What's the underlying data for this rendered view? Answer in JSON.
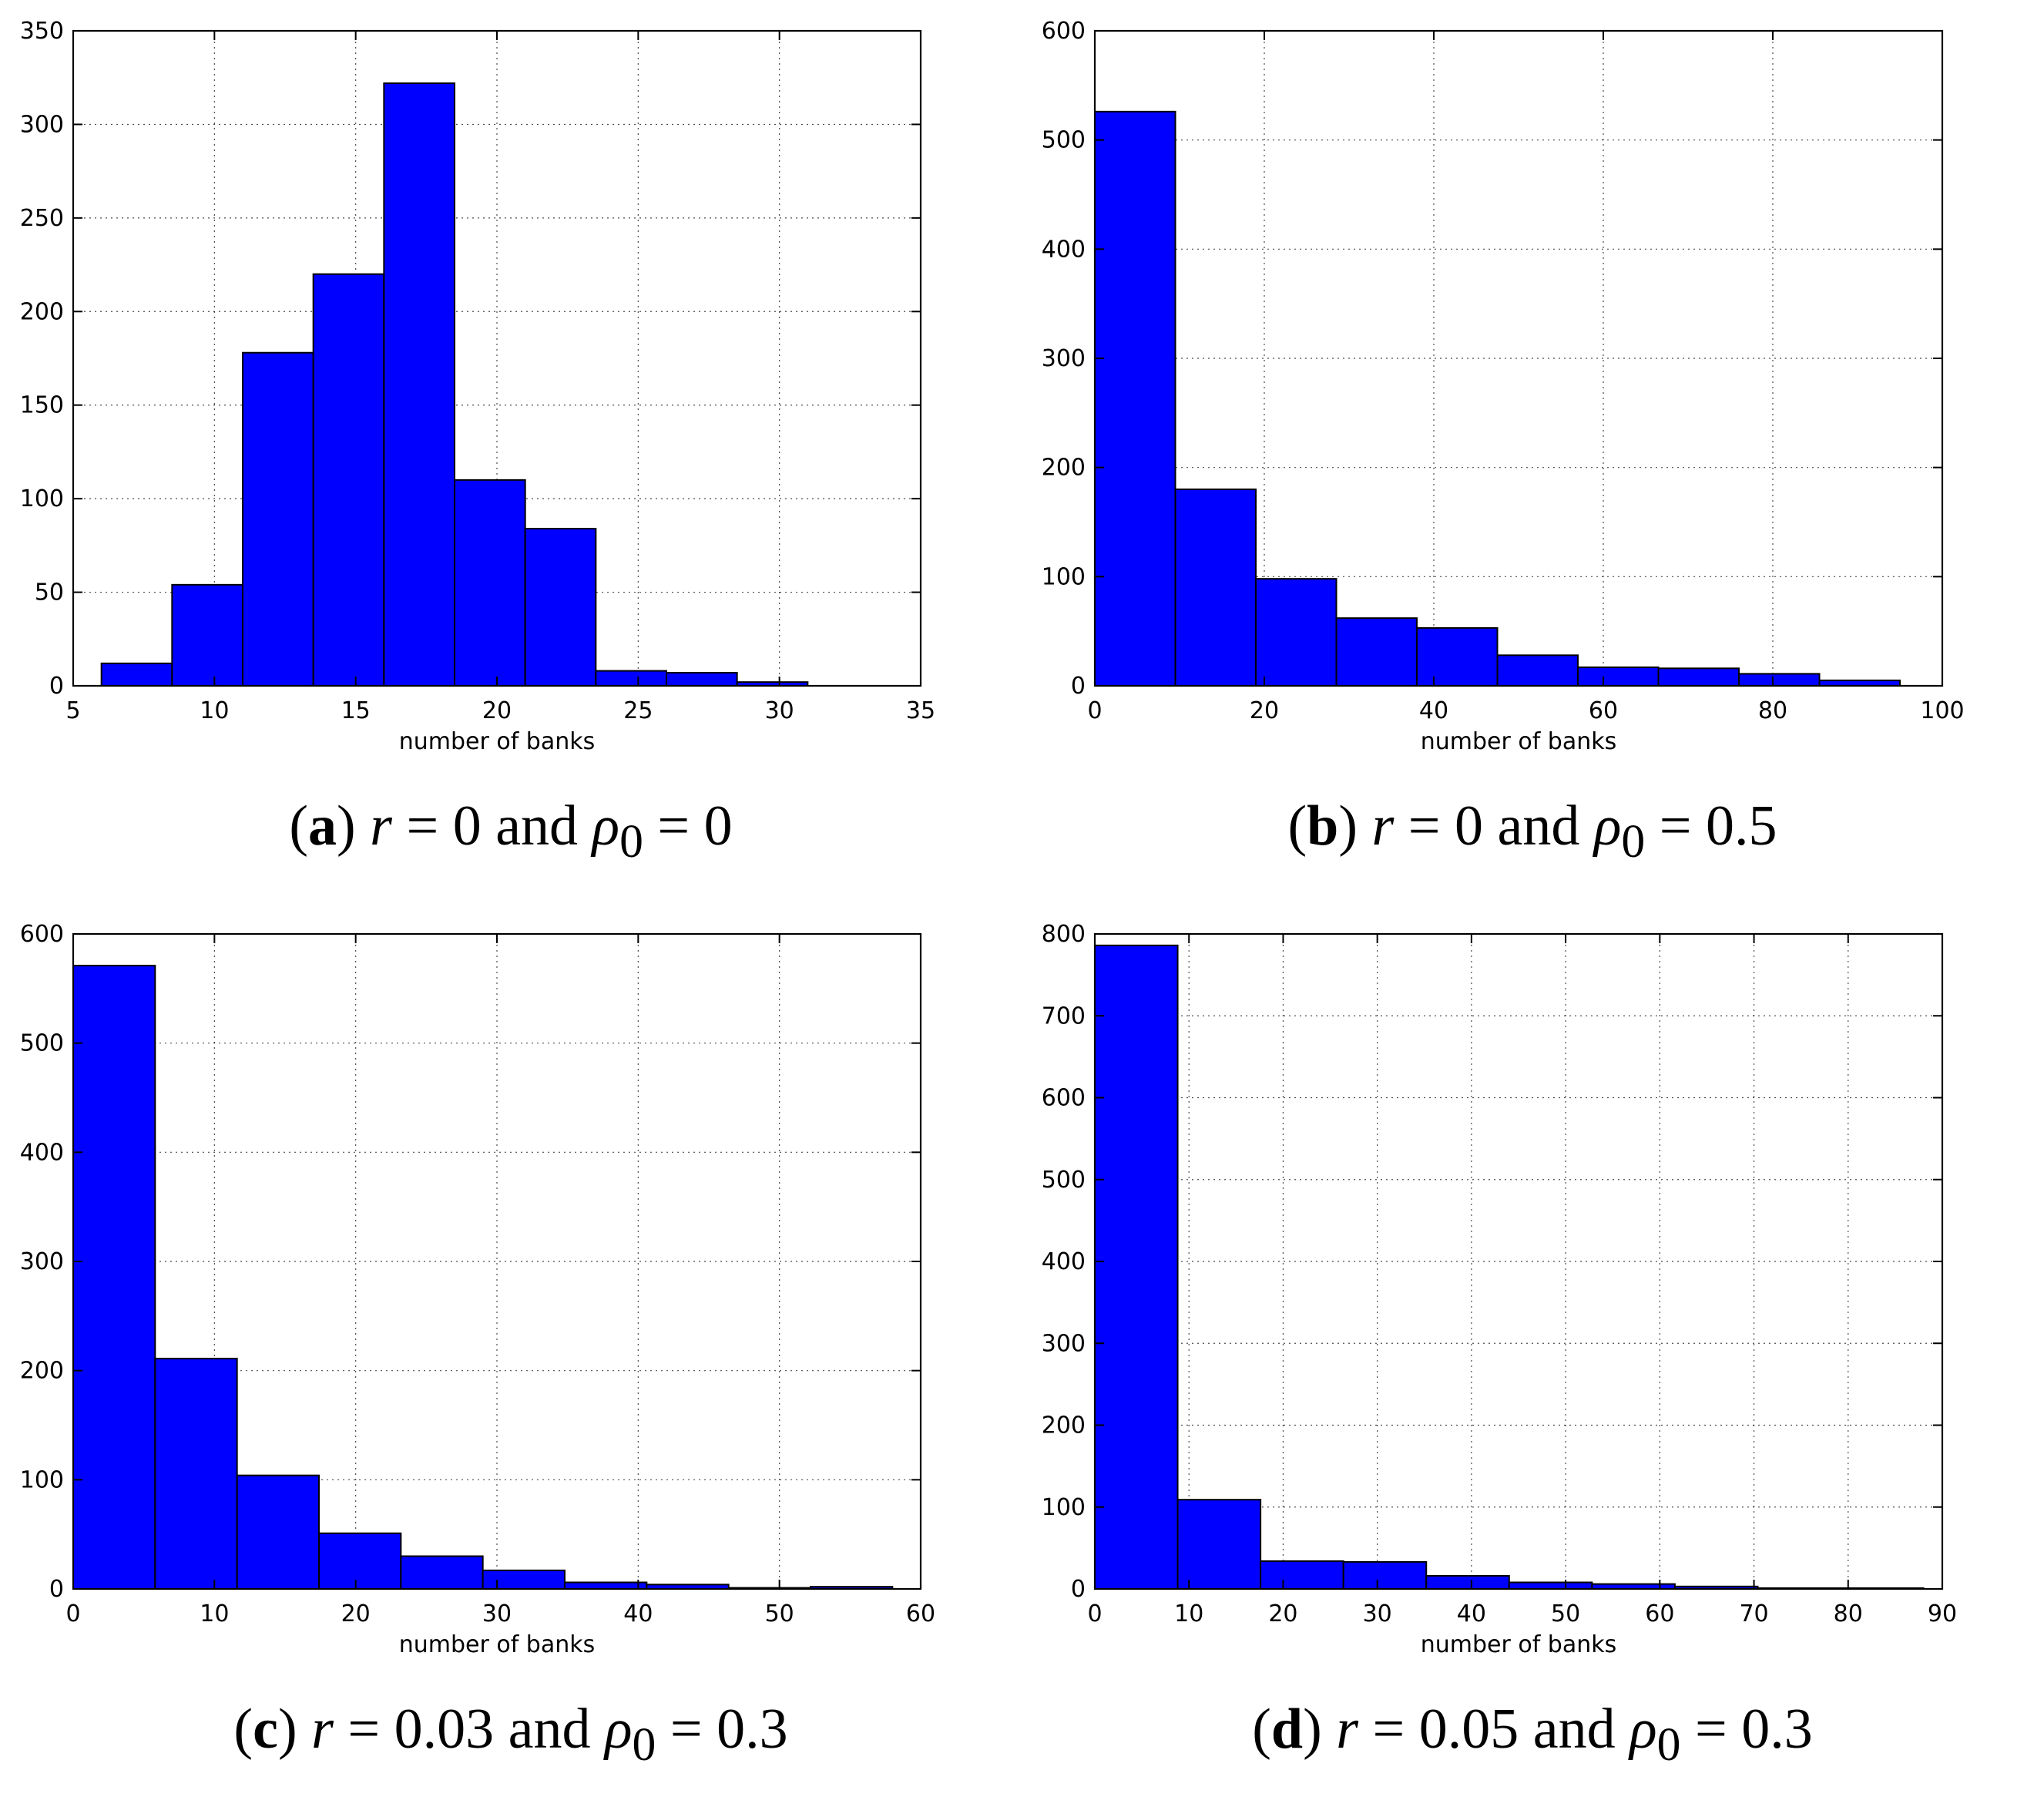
{
  "chart_data": [
    {
      "id": "a",
      "type": "bar",
      "subtype": "histogram",
      "panel_label": "a",
      "caption": "r = 0 and ρ0 = 0",
      "caption_parts": {
        "var1": "r",
        "rel1": " = 0 and ",
        "var2": "ρ",
        "sub2": "0",
        "rel2": " = 0"
      },
      "xlabel": "number of banks",
      "ylabel": "",
      "xlim": [
        5,
        35
      ],
      "ylim": [
        0,
        350
      ],
      "xticks": [
        5,
        10,
        15,
        20,
        25,
        30,
        35
      ],
      "yticks": [
        0,
        50,
        100,
        150,
        200,
        250,
        300,
        350
      ],
      "grid": true,
      "bar_color": "#0000ff",
      "bins": [
        {
          "x0": 6.0,
          "x1": 8.5,
          "value": 12
        },
        {
          "x0": 8.5,
          "x1": 11.0,
          "value": 54
        },
        {
          "x0": 11.0,
          "x1": 13.5,
          "value": 178
        },
        {
          "x0": 13.5,
          "x1": 16.0,
          "value": 220
        },
        {
          "x0": 16.0,
          "x1": 18.5,
          "value": 322
        },
        {
          "x0": 18.5,
          "x1": 21.0,
          "value": 110
        },
        {
          "x0": 21.0,
          "x1": 23.5,
          "value": 84
        },
        {
          "x0": 23.5,
          "x1": 26.0,
          "value": 8
        },
        {
          "x0": 26.0,
          "x1": 28.5,
          "value": 7
        },
        {
          "x0": 28.5,
          "x1": 31.0,
          "value": 2
        }
      ]
    },
    {
      "id": "b",
      "type": "bar",
      "subtype": "histogram",
      "panel_label": "b",
      "caption": "r = 0 and ρ0 = 0.5",
      "caption_parts": {
        "var1": "r",
        "rel1": " = 0 and ",
        "var2": "ρ",
        "sub2": "0",
        "rel2": " = 0.5"
      },
      "xlabel": "number of banks",
      "ylabel": "",
      "xlim": [
        0,
        100
      ],
      "ylim": [
        0,
        600
      ],
      "xticks": [
        0,
        20,
        40,
        60,
        80,
        100
      ],
      "yticks": [
        0,
        100,
        200,
        300,
        400,
        500,
        600
      ],
      "grid": true,
      "bar_color": "#0000ff",
      "bins": [
        {
          "x0": 0.0,
          "x1": 9.5,
          "value": 526
        },
        {
          "x0": 9.5,
          "x1": 19.0,
          "value": 180
        },
        {
          "x0": 19.0,
          "x1": 28.5,
          "value": 98
        },
        {
          "x0": 28.5,
          "x1": 38.0,
          "value": 62
        },
        {
          "x0": 38.0,
          "x1": 47.5,
          "value": 53
        },
        {
          "x0": 47.5,
          "x1": 57.0,
          "value": 28
        },
        {
          "x0": 57.0,
          "x1": 66.5,
          "value": 17
        },
        {
          "x0": 66.5,
          "x1": 76.0,
          "value": 16
        },
        {
          "x0": 76.0,
          "x1": 85.5,
          "value": 11
        },
        {
          "x0": 85.5,
          "x1": 95.0,
          "value": 5
        }
      ]
    },
    {
      "id": "c",
      "type": "bar",
      "subtype": "histogram",
      "panel_label": "c",
      "caption": "r = 0.03 and ρ0 = 0.3",
      "caption_parts": {
        "var1": "r",
        "rel1": " = 0.03 and ",
        "var2": "ρ",
        "sub2": "0",
        "rel2": " = 0.3"
      },
      "xlabel": "number of banks",
      "ylabel": "",
      "xlim": [
        0,
        60
      ],
      "ylim": [
        0,
        600
      ],
      "xticks": [
        0,
        10,
        20,
        30,
        40,
        50,
        60
      ],
      "yticks": [
        0,
        100,
        200,
        300,
        400,
        500,
        600
      ],
      "grid": true,
      "bar_color": "#0000ff",
      "bins": [
        {
          "x0": 0.0,
          "x1": 5.8,
          "value": 571
        },
        {
          "x0": 5.8,
          "x1": 11.6,
          "value": 211
        },
        {
          "x0": 11.6,
          "x1": 17.4,
          "value": 104
        },
        {
          "x0": 17.4,
          "x1": 23.2,
          "value": 51
        },
        {
          "x0": 23.2,
          "x1": 29.0,
          "value": 30
        },
        {
          "x0": 29.0,
          "x1": 34.8,
          "value": 17
        },
        {
          "x0": 34.8,
          "x1": 40.6,
          "value": 6
        },
        {
          "x0": 40.6,
          "x1": 46.4,
          "value": 4
        },
        {
          "x0": 46.4,
          "x1": 52.2,
          "value": 1
        },
        {
          "x0": 52.2,
          "x1": 58.0,
          "value": 2
        }
      ]
    },
    {
      "id": "d",
      "type": "bar",
      "subtype": "histogram",
      "panel_label": "d",
      "caption": "r = 0.05 and ρ0 = 0.3",
      "caption_parts": {
        "var1": "r",
        "rel1": " = 0.05 and ",
        "var2": "ρ",
        "sub2": "0",
        "rel2": " = 0.3"
      },
      "xlabel": "number of banks",
      "ylabel": "",
      "xlim": [
        0,
        90
      ],
      "ylim": [
        0,
        800
      ],
      "xticks": [
        0,
        10,
        20,
        30,
        40,
        50,
        60,
        70,
        80,
        90
      ],
      "yticks": [
        0,
        100,
        200,
        300,
        400,
        500,
        600,
        700,
        800
      ],
      "grid": true,
      "bar_color": "#0000ff",
      "bins": [
        {
          "x0": 0.0,
          "x1": 8.8,
          "value": 786
        },
        {
          "x0": 8.8,
          "x1": 17.6,
          "value": 109
        },
        {
          "x0": 17.6,
          "x1": 26.4,
          "value": 34
        },
        {
          "x0": 26.4,
          "x1": 35.2,
          "value": 33
        },
        {
          "x0": 35.2,
          "x1": 44.0,
          "value": 16
        },
        {
          "x0": 44.0,
          "x1": 52.8,
          "value": 8
        },
        {
          "x0": 52.8,
          "x1": 61.6,
          "value": 6
        },
        {
          "x0": 61.6,
          "x1": 70.4,
          "value": 3
        },
        {
          "x0": 70.4,
          "x1": 79.2,
          "value": 1
        },
        {
          "x0": 79.2,
          "x1": 88.0,
          "value": 1
        }
      ]
    }
  ]
}
